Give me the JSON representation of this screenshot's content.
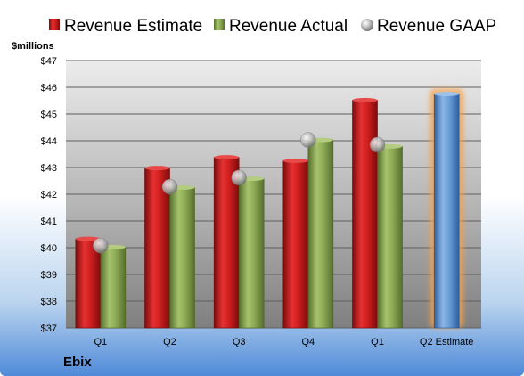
{
  "chart_data": {
    "type": "bar",
    "company": "Ebix",
    "y_unit_label": "$millions",
    "ylim": [
      37,
      47
    ],
    "y_ticks": [
      "$37",
      "$38",
      "$39",
      "$40",
      "$41",
      "$42",
      "$43",
      "$44",
      "$45",
      "$46",
      "$47"
    ],
    "grid": true,
    "legend_position": "top",
    "categories": [
      "Q1",
      "Q2",
      "Q3",
      "Q4",
      "Q1",
      "Q2 Estimate"
    ],
    "series": [
      {
        "name": "Revenue Estimate",
        "color": "#cc2222",
        "values": [
          40.33,
          42.98,
          43.38,
          43.25,
          45.52,
          45.75
        ]
      },
      {
        "name": "Revenue Actual",
        "color": "#88a852",
        "values": [
          40.02,
          42.25,
          42.58,
          44.03,
          43.79,
          null
        ]
      },
      {
        "name": "Revenue GAAP",
        "color": "#b9b9b9",
        "values": [
          40.08,
          42.28,
          42.62,
          44.03,
          43.85,
          null
        ]
      }
    ],
    "highlight_color": "#f6a14a",
    "forecast_bar_color": "#6a9fd8"
  }
}
